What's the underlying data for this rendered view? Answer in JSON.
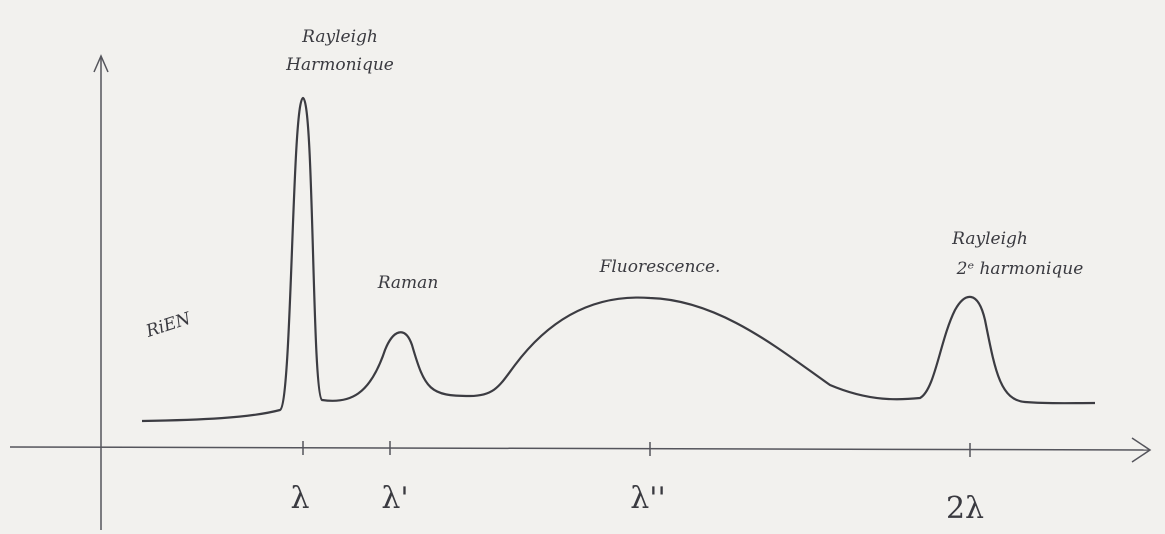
{
  "annotations": {
    "rayleigh_first": [
      "Rayleigh",
      "Harmonique"
    ],
    "raman": "Raman",
    "fluorescence": "Fluorescence.",
    "rayleigh_second": [
      "Rayleigh",
      "2ᵉ harmonique"
    ],
    "nothing": "RiEN"
  },
  "x_axis": {
    "ticks": [
      "λ",
      "λ'",
      "λ''",
      "2λ"
    ]
  }
}
